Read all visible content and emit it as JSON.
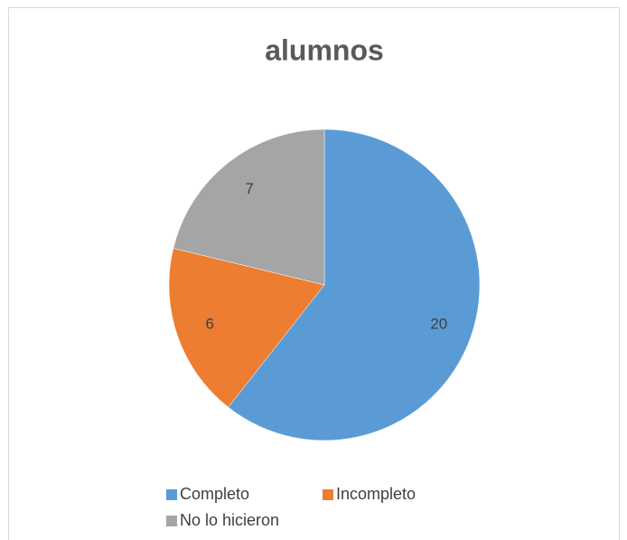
{
  "chart_data": {
    "type": "pie",
    "title": "alumnos",
    "categories": [
      "Completo",
      "Incompleto",
      "No lo hicieron"
    ],
    "values": [
      20,
      6,
      7
    ],
    "colors": [
      "#5b9bd5",
      "#ed7d31",
      "#a5a5a5"
    ],
    "legend": "bottom"
  }
}
